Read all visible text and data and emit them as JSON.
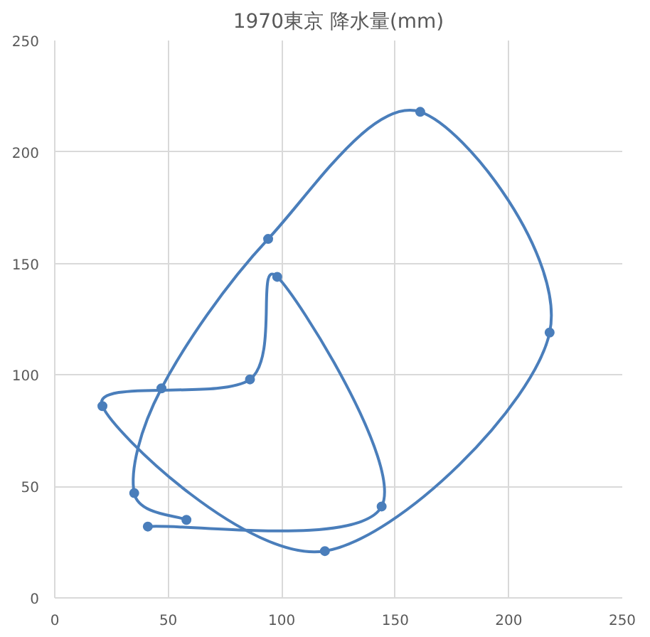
{
  "chart_data": {
    "type": "line",
    "title": "1970東京 降水量(mm)",
    "series": [
      {
        "color": "#4a7ebb",
        "x": [
          58,
          35,
          47,
          94,
          161,
          218,
          119,
          21,
          86,
          98,
          144,
          41
        ],
        "values": [
          35,
          47,
          94,
          161,
          218,
          119,
          21,
          86,
          98,
          144,
          41,
          32
        ]
      }
    ],
    "xlim": [
      0,
      250
    ],
    "xticks": [
      0,
      50,
      100,
      150,
      200,
      250
    ],
    "ylim": [
      0,
      250
    ],
    "yticks": [
      0,
      50,
      100,
      150,
      200,
      250
    ],
    "grid": true,
    "marker": "circle",
    "line_style": "solid"
  }
}
